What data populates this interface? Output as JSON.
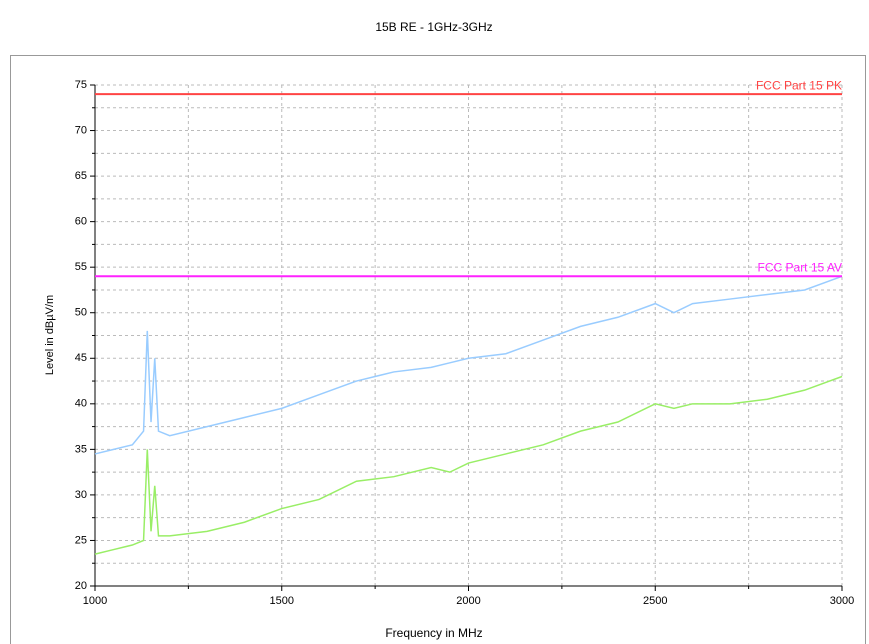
{
  "chart_data": {
    "type": "line",
    "title": "15B RE - 1GHz-3GHz",
    "xlabel": "Frequency in MHz",
    "ylabel": "Level in dBµV/m",
    "x": [
      1000,
      1050,
      1100,
      1130,
      1140,
      1150,
      1160,
      1170,
      1200,
      1300,
      1400,
      1500,
      1600,
      1700,
      1800,
      1900,
      1950,
      2000,
      2100,
      2200,
      2300,
      2400,
      2500,
      2550,
      2600,
      2700,
      2800,
      2900,
      3000
    ],
    "series": [
      {
        "color": "#99ccff",
        "values": [
          34.5,
          35,
          35.5,
          37,
          48,
          38,
          45,
          37,
          36.5,
          37.5,
          38.5,
          39.5,
          41,
          42.5,
          43.5,
          44,
          44.5,
          45,
          45.5,
          47,
          48.5,
          49.5,
          51,
          50,
          51,
          51.5,
          52,
          52.5,
          54
        ]
      },
      {
        "color": "#99ee66",
        "values": [
          23.5,
          24,
          24.5,
          25,
          35,
          26,
          31,
          25.5,
          25.5,
          26,
          27,
          28.5,
          29.5,
          31.5,
          32,
          33,
          32.5,
          33.5,
          34.5,
          35.5,
          37,
          38,
          40,
          39.5,
          40,
          40,
          40.5,
          41.5,
          43
        ]
      }
    ],
    "limits": [
      {
        "name": "FCC Part 15 PK",
        "value": 74,
        "color": "#ff4444"
      },
      {
        "name": "FCC Part 15 AV",
        "value": 54,
        "color": "#ff22ff"
      }
    ],
    "xlim": [
      1000,
      3000
    ],
    "xticks": [
      1000,
      1500,
      2000,
      2500,
      3000
    ],
    "xminor_ticks": [
      1250,
      1750,
      2250,
      2750
    ],
    "ylim": [
      20,
      75
    ],
    "yticks": [
      20,
      25,
      30,
      35,
      40,
      45,
      50,
      55,
      60,
      65,
      70,
      75
    ],
    "yminor_ticks": [
      22.5,
      27.5,
      32.5,
      37.5,
      42.5,
      47.5,
      52.5,
      57.5,
      62.5,
      67.5,
      72.5
    ],
    "grid": true
  }
}
